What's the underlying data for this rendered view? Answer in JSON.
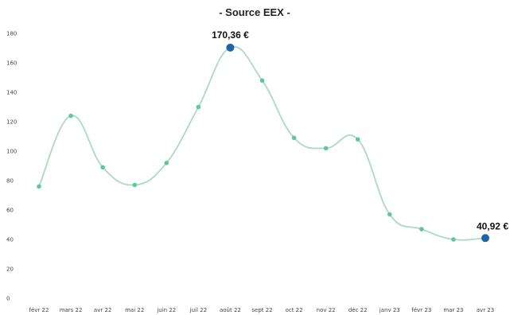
{
  "chart_data": {
    "type": "line",
    "title": "",
    "subtitle": "- Source EEX -",
    "xlabel": "",
    "ylabel": "",
    "categories": [
      "févr 22",
      "mars 22",
      "avr 22",
      "mai 22",
      "juin 22",
      "juil 22",
      "août 22",
      "sept 22",
      "oct 22",
      "nov 22",
      "déc 22",
      "janv 23",
      "févr 23",
      "mar 23",
      "avr 23"
    ],
    "series": [
      {
        "values": [
          76,
          124,
          89,
          77,
          92,
          130,
          170.36,
          148,
          109,
          102,
          108,
          57,
          47,
          40,
          40.92
        ],
        "color": "#a8dcc0",
        "marker_color": "#5fc79a",
        "highlight_color": "#1f63a8"
      }
    ],
    "y_ticks": [
      0,
      20,
      40,
      60,
      80,
      100,
      120,
      140,
      160,
      180
    ],
    "ylim": [
      0,
      180
    ],
    "grid": false,
    "legend": "none",
    "annotations": [
      {
        "index": 6,
        "text": "170,36 €"
      },
      {
        "index": 14,
        "text": "40,92 €"
      }
    ]
  }
}
